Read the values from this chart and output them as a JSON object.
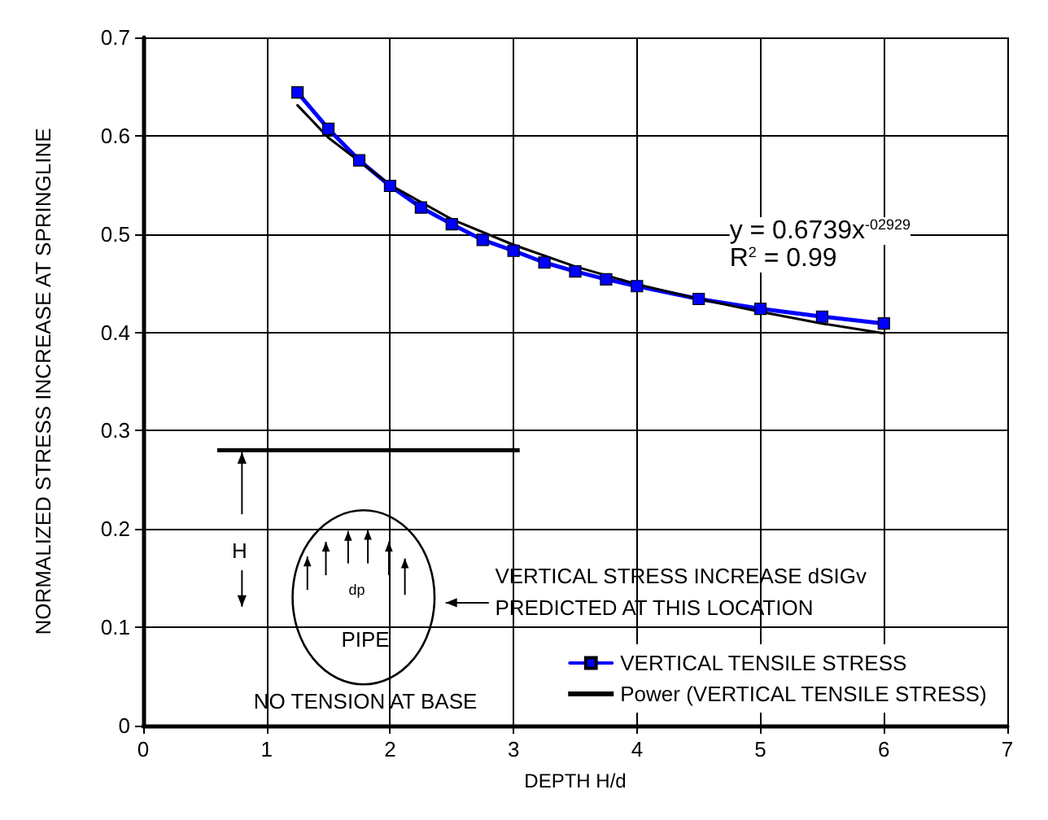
{
  "chart_data": {
    "type": "line",
    "xlabel": "DEPTH H/d",
    "ylabel": "NORMALIZED STRESS INCREASE AT SPRINGLINE",
    "xlim": [
      0,
      7
    ],
    "xticks": [
      0,
      1,
      2,
      3,
      4,
      5,
      6,
      7
    ],
    "ylim": [
      0,
      0.7
    ],
    "yticks": [
      0,
      0.1,
      0.2,
      0.3,
      0.4,
      0.5,
      0.6,
      0.7
    ],
    "grid": true,
    "legend": "bottom right",
    "marker": "square",
    "line_style": "solid",
    "series": [
      {
        "name": "VERTICAL TENSILE STRESS",
        "color": "#0000ff",
        "x": [
          1.25,
          1.5,
          1.75,
          2,
          2.25,
          2.5,
          2.75,
          3,
          3.25,
          3.5,
          3.75,
          4,
          4.5,
          5,
          5.5,
          6
        ],
        "values": [
          0.644,
          0.607,
          0.575,
          0.549,
          0.527,
          0.51,
          0.494,
          0.483,
          0.471,
          0.462,
          0.454,
          0.447,
          0.434,
          0.424,
          0.416,
          0.409
        ]
      },
      {
        "name": "Power (VERTICAL TENSILE STRESS)",
        "color": "#000000",
        "marker": "none",
        "x": [
          1.25,
          1.5,
          2,
          2.5,
          3,
          3.5,
          4,
          4.5,
          5,
          5.5,
          6
        ],
        "values": [
          0.631,
          0.598,
          0.55,
          0.515,
          0.489,
          0.467,
          0.449,
          0.434,
          0.421,
          0.409,
          0.399
        ]
      }
    ],
    "annotations": [
      {
        "text": "y = 0.6739x$^{-02929}$"
      },
      {
        "text": "R$^{2}$ = 0.99"
      },
      {
        "text": "H"
      },
      {
        "text": "dp"
      },
      {
        "text": "PIPE"
      },
      {
        "text": "VERTICAL STRESS INCREASE dSIGv"
      },
      {
        "text": "PREDICTED AT THIS LOCATION"
      },
      {
        "text": "NO TENSION AT BASE"
      }
    ]
  }
}
